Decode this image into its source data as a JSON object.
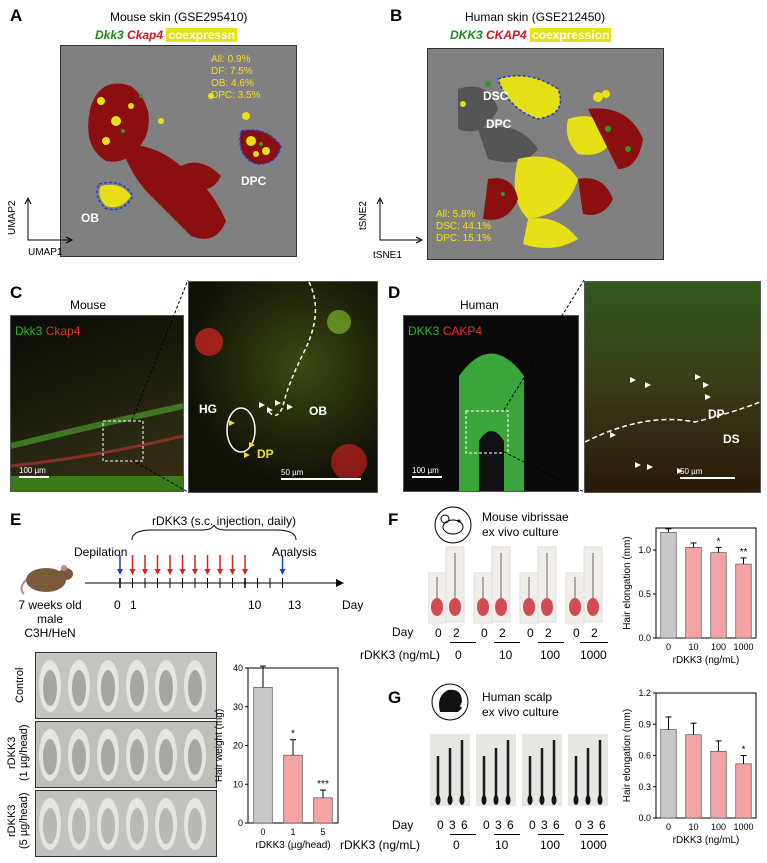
{
  "panelA": {
    "label": "A",
    "title": "Mouse skin (GSE295410)",
    "legend": {
      "gene1": "Dkk3",
      "gene2": "Ckap4",
      "coexp": "coexpressn"
    },
    "stats": [
      "All: 0.9%",
      "DF: 7.5%",
      "OB: 4.6%",
      "DPC: 3.5%"
    ],
    "clusters": [
      "OB",
      "DPC"
    ],
    "axes": {
      "x": "UMAP1",
      "y": "UMAP2"
    }
  },
  "panelB": {
    "label": "B",
    "title": "Human skin (GSE212450)",
    "legend": {
      "gene1": "DKK3",
      "gene2": "CKAP4",
      "coexp": "coexpression"
    },
    "stats": [
      "All: 5.8%",
      "DSC: 44.1%",
      "DPC: 15.1%"
    ],
    "clusters": [
      "DSC",
      "DPC"
    ],
    "axes": {
      "x": "tSNE1",
      "y": "tSNE2"
    }
  },
  "panelC": {
    "label": "C",
    "title": "Mouse",
    "legend": {
      "gene1": "Dkk3",
      "gene2": "Ckap4"
    },
    "labels": [
      "HG",
      "OB",
      "DP"
    ],
    "scalebars": [
      "100 µm",
      "50 µm"
    ]
  },
  "panelD": {
    "label": "D",
    "title": "Human",
    "legend": {
      "gene1": "DKK3",
      "gene2": "CAKP4"
    },
    "labels": [
      "DP",
      "DS"
    ],
    "scalebars": [
      "100 µm",
      "50 µm"
    ]
  },
  "panelE": {
    "label": "E",
    "injection": "rDKK3 (s.c. injection, daily)",
    "depilation": "Depilation",
    "analysis": "Analysis",
    "mouse_desc": [
      "7 weeks old",
      "male C3H/HeN"
    ],
    "ticks": [
      "0",
      "1",
      "10",
      "13"
    ],
    "day": "Day",
    "rows": [
      "Control",
      "rDKK3\n(1 µg/head)",
      "rDKK3\n(5 µg/head)"
    ],
    "colors": {
      "control_bar": "#c8c8c8",
      "treat_bar": "#f4a3a3",
      "arrow_red": "#e0201b",
      "arrow_blue": "#1f3fbf"
    }
  },
  "panelF": {
    "label": "F",
    "title": [
      "Mouse vibrissae",
      "ex vivo culture"
    ],
    "day_label": "Day",
    "days": [
      "0",
      "2"
    ],
    "conc_label": "rDKK3 (ng/mL)",
    "concs": [
      "0",
      "10",
      "100",
      "1000"
    ]
  },
  "panelG": {
    "label": "G",
    "title": [
      "Human scalp",
      "ex vivo culture"
    ],
    "day_label": "Day",
    "days": [
      "0",
      "3",
      "6"
    ],
    "conc_label": "rDKK3 (ng/mL)",
    "concs": [
      "0",
      "10",
      "100",
      "1000"
    ]
  },
  "chart_data": [
    {
      "type": "bar",
      "panel": "E",
      "categories": [
        "0",
        "1",
        "5"
      ],
      "values": [
        35,
        17.5,
        6.5
      ],
      "errors": [
        5.5,
        4,
        2
      ],
      "sig": [
        "",
        "*",
        "***"
      ],
      "xlabel": "rDKK3 (µg/head)",
      "ylabel": "Hair weight (mg)",
      "ylim": [
        0,
        40
      ],
      "yticks": [
        "0",
        "10",
        "20",
        "30",
        "40"
      ]
    },
    {
      "type": "bar",
      "panel": "F",
      "categories": [
        "0",
        "10",
        "100",
        "1000"
      ],
      "values": [
        1.2,
        1.03,
        0.97,
        0.84
      ],
      "errors": [
        0.04,
        0.05,
        0.06,
        0.07
      ],
      "sig": [
        "",
        "",
        "*",
        "**"
      ],
      "xlabel": "rDKK3 (ng/mL)",
      "ylabel": "Hair elongation (mm)",
      "ylim": [
        0,
        1.25
      ],
      "yticks": [
        "0.0",
        "0.5",
        "1.0"
      ]
    },
    {
      "type": "bar",
      "panel": "G",
      "categories": [
        "0",
        "10",
        "100",
        "1000"
      ],
      "values": [
        0.85,
        0.8,
        0.64,
        0.52
      ],
      "errors": [
        0.12,
        0.11,
        0.1,
        0.08
      ],
      "sig": [
        "",
        "",
        "",
        "*"
      ],
      "xlabel": "rDKK3 (ng/mL)",
      "ylabel": "Hair elongation (mm)",
      "ylim": [
        0,
        1.2
      ],
      "yticks": [
        "0.0",
        "0.3",
        "0.6",
        "0.9",
        "1.2"
      ]
    }
  ]
}
